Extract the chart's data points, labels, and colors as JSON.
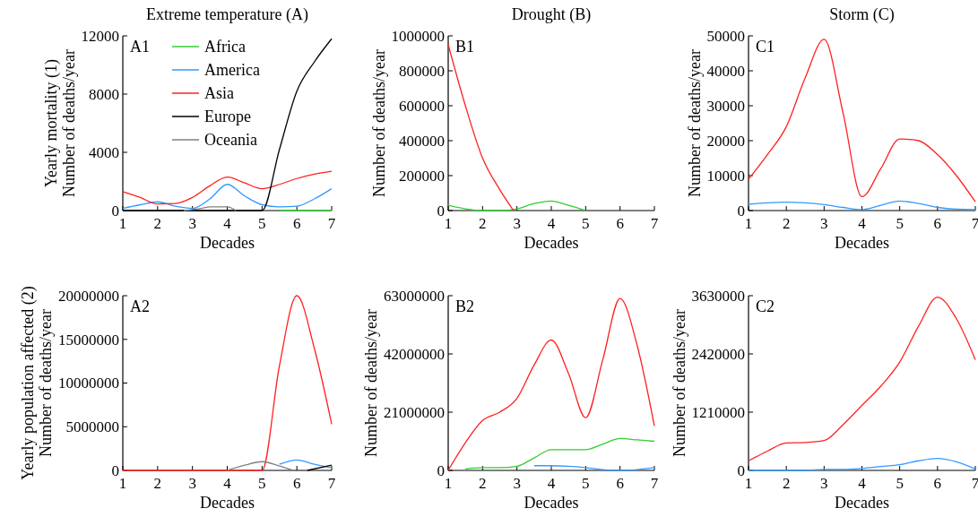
{
  "chart_data": [
    {
      "type": "line",
      "title": "Extreme temperature (A)",
      "xlabel": "Decades",
      "ylabel": "Yearly mortality (1)\nNumber of deaths/year",
      "annotations": [
        "A1"
      ],
      "legend": "top left",
      "x": [
        1,
        1.5,
        2,
        2.5,
        3,
        3.5,
        4,
        4.5,
        5,
        5.5,
        6,
        6.5,
        7
      ],
      "xlim": [
        1,
        7
      ],
      "xticks": [
        1,
        2,
        3,
        4,
        5,
        6,
        7
      ],
      "ylim": [
        0,
        12000
      ],
      "yticks": [
        0,
        4000,
        8000,
        12000
      ],
      "series": [
        {
          "name": "Africa",
          "color": "#33cc33",
          "x": [
            5.5,
            6,
            6.5,
            7
          ],
          "values": [
            0,
            0,
            0,
            0
          ]
        },
        {
          "name": "America",
          "color": "#3399ff",
          "values": [
            150,
            400,
            600,
            300,
            150,
            800,
            1800,
            1000,
            400,
            250,
            300,
            800,
            1500
          ]
        },
        {
          "name": "Asia",
          "color": "#ff2020",
          "values": [
            1300,
            900,
            450,
            480,
            900,
            1700,
            2300,
            1900,
            1500,
            1800,
            2200,
            2500,
            2700
          ]
        },
        {
          "name": "Europe",
          "color": "#000000",
          "x": [
            1,
            5,
            5.5,
            6,
            6.5,
            7
          ],
          "values": [
            0,
            0,
            4200,
            8200,
            10200,
            11800
          ]
        },
        {
          "name": "Oceania",
          "color": "#808080",
          "x": [
            2.75,
            3.25,
            3.5,
            4,
            4.25
          ],
          "values": [
            0,
            150,
            250,
            250,
            0
          ]
        }
      ]
    },
    {
      "type": "line",
      "title": "Drought (B)",
      "xlabel": "Decades",
      "ylabel": "Number of deaths/year",
      "annotations": [
        "B1"
      ],
      "x": [
        1,
        1.5,
        2,
        2.5,
        3,
        3.5,
        4,
        4.5,
        5
      ],
      "xlim": [
        1,
        7
      ],
      "xticks": [
        1,
        2,
        3,
        4,
        5,
        6,
        7
      ],
      "ylim": [
        0,
        1000000
      ],
      "yticks": [
        0,
        200000,
        400000,
        600000,
        800000,
        1000000
      ],
      "series": [
        {
          "color": "#33cc33",
          "values": [
            30000,
            10000,
            0,
            0,
            10000,
            40000,
            55000,
            30000,
            0
          ]
        },
        {
          "color": "#ff2020",
          "x": [
            1,
            1.5,
            2,
            2.5,
            2.9
          ],
          "values": [
            950000,
            600000,
            300000,
            120000,
            0
          ]
        }
      ]
    },
    {
      "type": "line",
      "title": "Storm (C)",
      "xlabel": "Decades",
      "ylabel": "Number of deaths/year",
      "annotations": [
        "C1"
      ],
      "x": [
        1,
        1.5,
        2,
        2.5,
        3,
        3.5,
        4,
        4.5,
        5,
        5.5,
        6,
        6.5,
        7
      ],
      "xlim": [
        1,
        7
      ],
      "xticks": [
        1,
        2,
        3,
        4,
        5,
        6,
        7
      ],
      "ylim": [
        0,
        50000
      ],
      "yticks": [
        0,
        10000,
        20000,
        30000,
        40000,
        50000
      ],
      "series": [
        {
          "color": "#3399ff",
          "values": [
            1800,
            2200,
            2400,
            2200,
            1700,
            900,
            300,
            1500,
            2700,
            2000,
            900,
            400,
            300
          ]
        },
        {
          "color": "#ff2020",
          "values": [
            9000,
            16000,
            24000,
            38000,
            49000,
            28000,
            4000,
            12000,
            20500,
            20000,
            16000,
            10000,
            2500
          ]
        }
      ]
    },
    {
      "type": "line",
      "xlabel": "Decades",
      "ylabel": "Yearly population affected (2)\nNumber of deaths/year",
      "annotations": [
        "A2"
      ],
      "x": [
        1,
        2,
        3,
        3.5,
        5,
        5.5,
        6,
        6.5,
        7
      ],
      "xlim": [
        1,
        7
      ],
      "xticks": [
        1,
        2,
        3,
        4,
        5,
        6,
        7
      ],
      "ylim": [
        0,
        20000000
      ],
      "yticks": [
        0,
        5000000,
        10000000,
        15000000,
        20000000
      ],
      "series": [
        {
          "color": "#ff2020",
          "values": [
            0,
            0,
            0,
            0,
            0,
            12000000,
            20000000,
            14000000,
            5300000
          ]
        },
        {
          "color": "#808080",
          "x": [
            4,
            4.5,
            5,
            5.5,
            5.9
          ],
          "values": [
            0,
            600000,
            1000000,
            500000,
            0
          ]
        },
        {
          "color": "#3399ff",
          "x": [
            5.5,
            6,
            6.5,
            7
          ],
          "values": [
            700000,
            1200000,
            700000,
            300000
          ]
        },
        {
          "color": "#000000",
          "x": [
            6.3,
            7
          ],
          "values": [
            0,
            600000
          ]
        }
      ]
    },
    {
      "type": "line",
      "xlabel": "Decades",
      "ylabel": "Number of deaths/year",
      "annotations": [
        "B2"
      ],
      "x": [
        1,
        1.5,
        2,
        2.5,
        3,
        3.5,
        4,
        4.5,
        5,
        5.5,
        6,
        6.5,
        7
      ],
      "xlim": [
        1,
        7
      ],
      "xticks": [
        1,
        2,
        3,
        4,
        5,
        6,
        7
      ],
      "ylim": [
        0,
        63000000
      ],
      "yticks": [
        0,
        21000000,
        42000000,
        63000000
      ],
      "series": [
        {
          "color": "#3399ff",
          "x": [
            3.5,
            4,
            4.5,
            5,
            5.5,
            6,
            6.5,
            7
          ],
          "values": [
            1700000,
            1700000,
            1500000,
            1000000,
            300000,
            0,
            300000,
            1000000
          ]
        },
        {
          "color": "#33cc33",
          "x": [
            1.5,
            2,
            2.5,
            3,
            3.5,
            4,
            4.5,
            5,
            5.5,
            6,
            6.5,
            7
          ],
          "values": [
            500000,
            1000000,
            1000000,
            1500000,
            4500000,
            7500000,
            7500000,
            7500000,
            9500000,
            11500000,
            11000000,
            10500000
          ]
        },
        {
          "color": "#ff2020",
          "values": [
            0,
            10000000,
            18000000,
            21000000,
            26000000,
            38000000,
            47000000,
            35000000,
            19000000,
            40000000,
            62000000,
            45000000,
            16000000
          ]
        }
      ]
    },
    {
      "type": "line",
      "xlabel": "Decades",
      "ylabel": "Number of deaths/year",
      "annotations": [
        "C2"
      ],
      "x": [
        1,
        1.5,
        2,
        2.5,
        3,
        3.5,
        4,
        4.5,
        5,
        5.5,
        6,
        6.5,
        7
      ],
      "xlim": [
        1,
        7
      ],
      "xticks": [
        1,
        2,
        3,
        4,
        5,
        6,
        7
      ],
      "ylim": [
        0,
        3630000
      ],
      "yticks": [
        0,
        1210000,
        2420000,
        3630000
      ],
      "series": [
        {
          "color": "#3399ff",
          "values": [
            0,
            0,
            0,
            0,
            20000,
            20000,
            40000,
            80000,
            120000,
            200000,
            250000,
            180000,
            30000
          ]
        },
        {
          "color": "#ff2020",
          "values": [
            200000,
            400000,
            570000,
            580000,
            620000,
            950000,
            1350000,
            1750000,
            2250000,
            3000000,
            3600000,
            3150000,
            2300000
          ]
        }
      ]
    }
  ]
}
